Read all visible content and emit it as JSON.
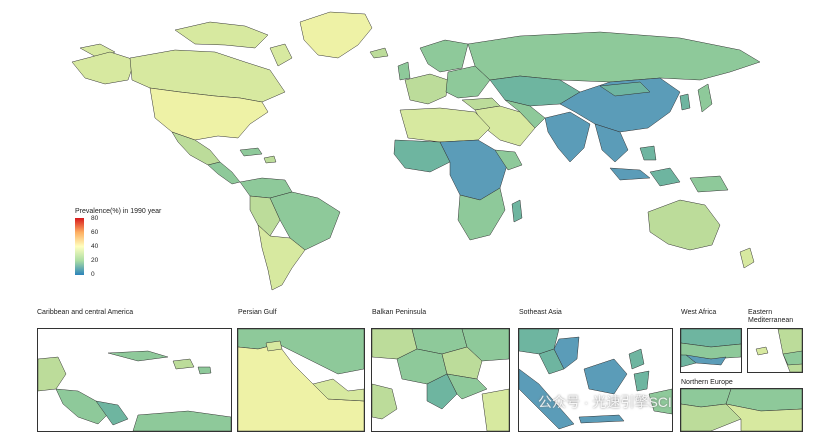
{
  "legend": {
    "title": "Prevalence(%) in 1990 year",
    "ticks": [
      "80",
      "60",
      "40",
      "20",
      "0"
    ],
    "scale_min": 0,
    "scale_max": 80,
    "gradient_colors": [
      "#d7191c",
      "#fdae61",
      "#ffffbf",
      "#abdda4",
      "#2b83ba"
    ]
  },
  "palette": {
    "sea": "#ffffff",
    "border": "#333333",
    "yellow_light": "#eef2a6",
    "yellow_green": "#d7e9a0",
    "green_light": "#bcdc9a",
    "green_mid": "#8ec99a",
    "teal": "#6eb5a0",
    "blue": "#5b9cb8"
  },
  "insets": [
    {
      "id": "caribbean",
      "title": "Caribbean and central America"
    },
    {
      "id": "persian-gulf",
      "title": "Persian Gulf"
    },
    {
      "id": "balkan",
      "title": "Balkan Peninsula"
    },
    {
      "id": "se-asia",
      "title": "Sotheast Asia"
    },
    {
      "id": "west-africa",
      "title": "West Africa"
    },
    {
      "id": "east-med",
      "title": "Eastern\nMediterranean"
    },
    {
      "id": "northern-europe",
      "title": "Northern Europe"
    }
  ],
  "watermark": "公众号 · 光速引擎SCI"
}
